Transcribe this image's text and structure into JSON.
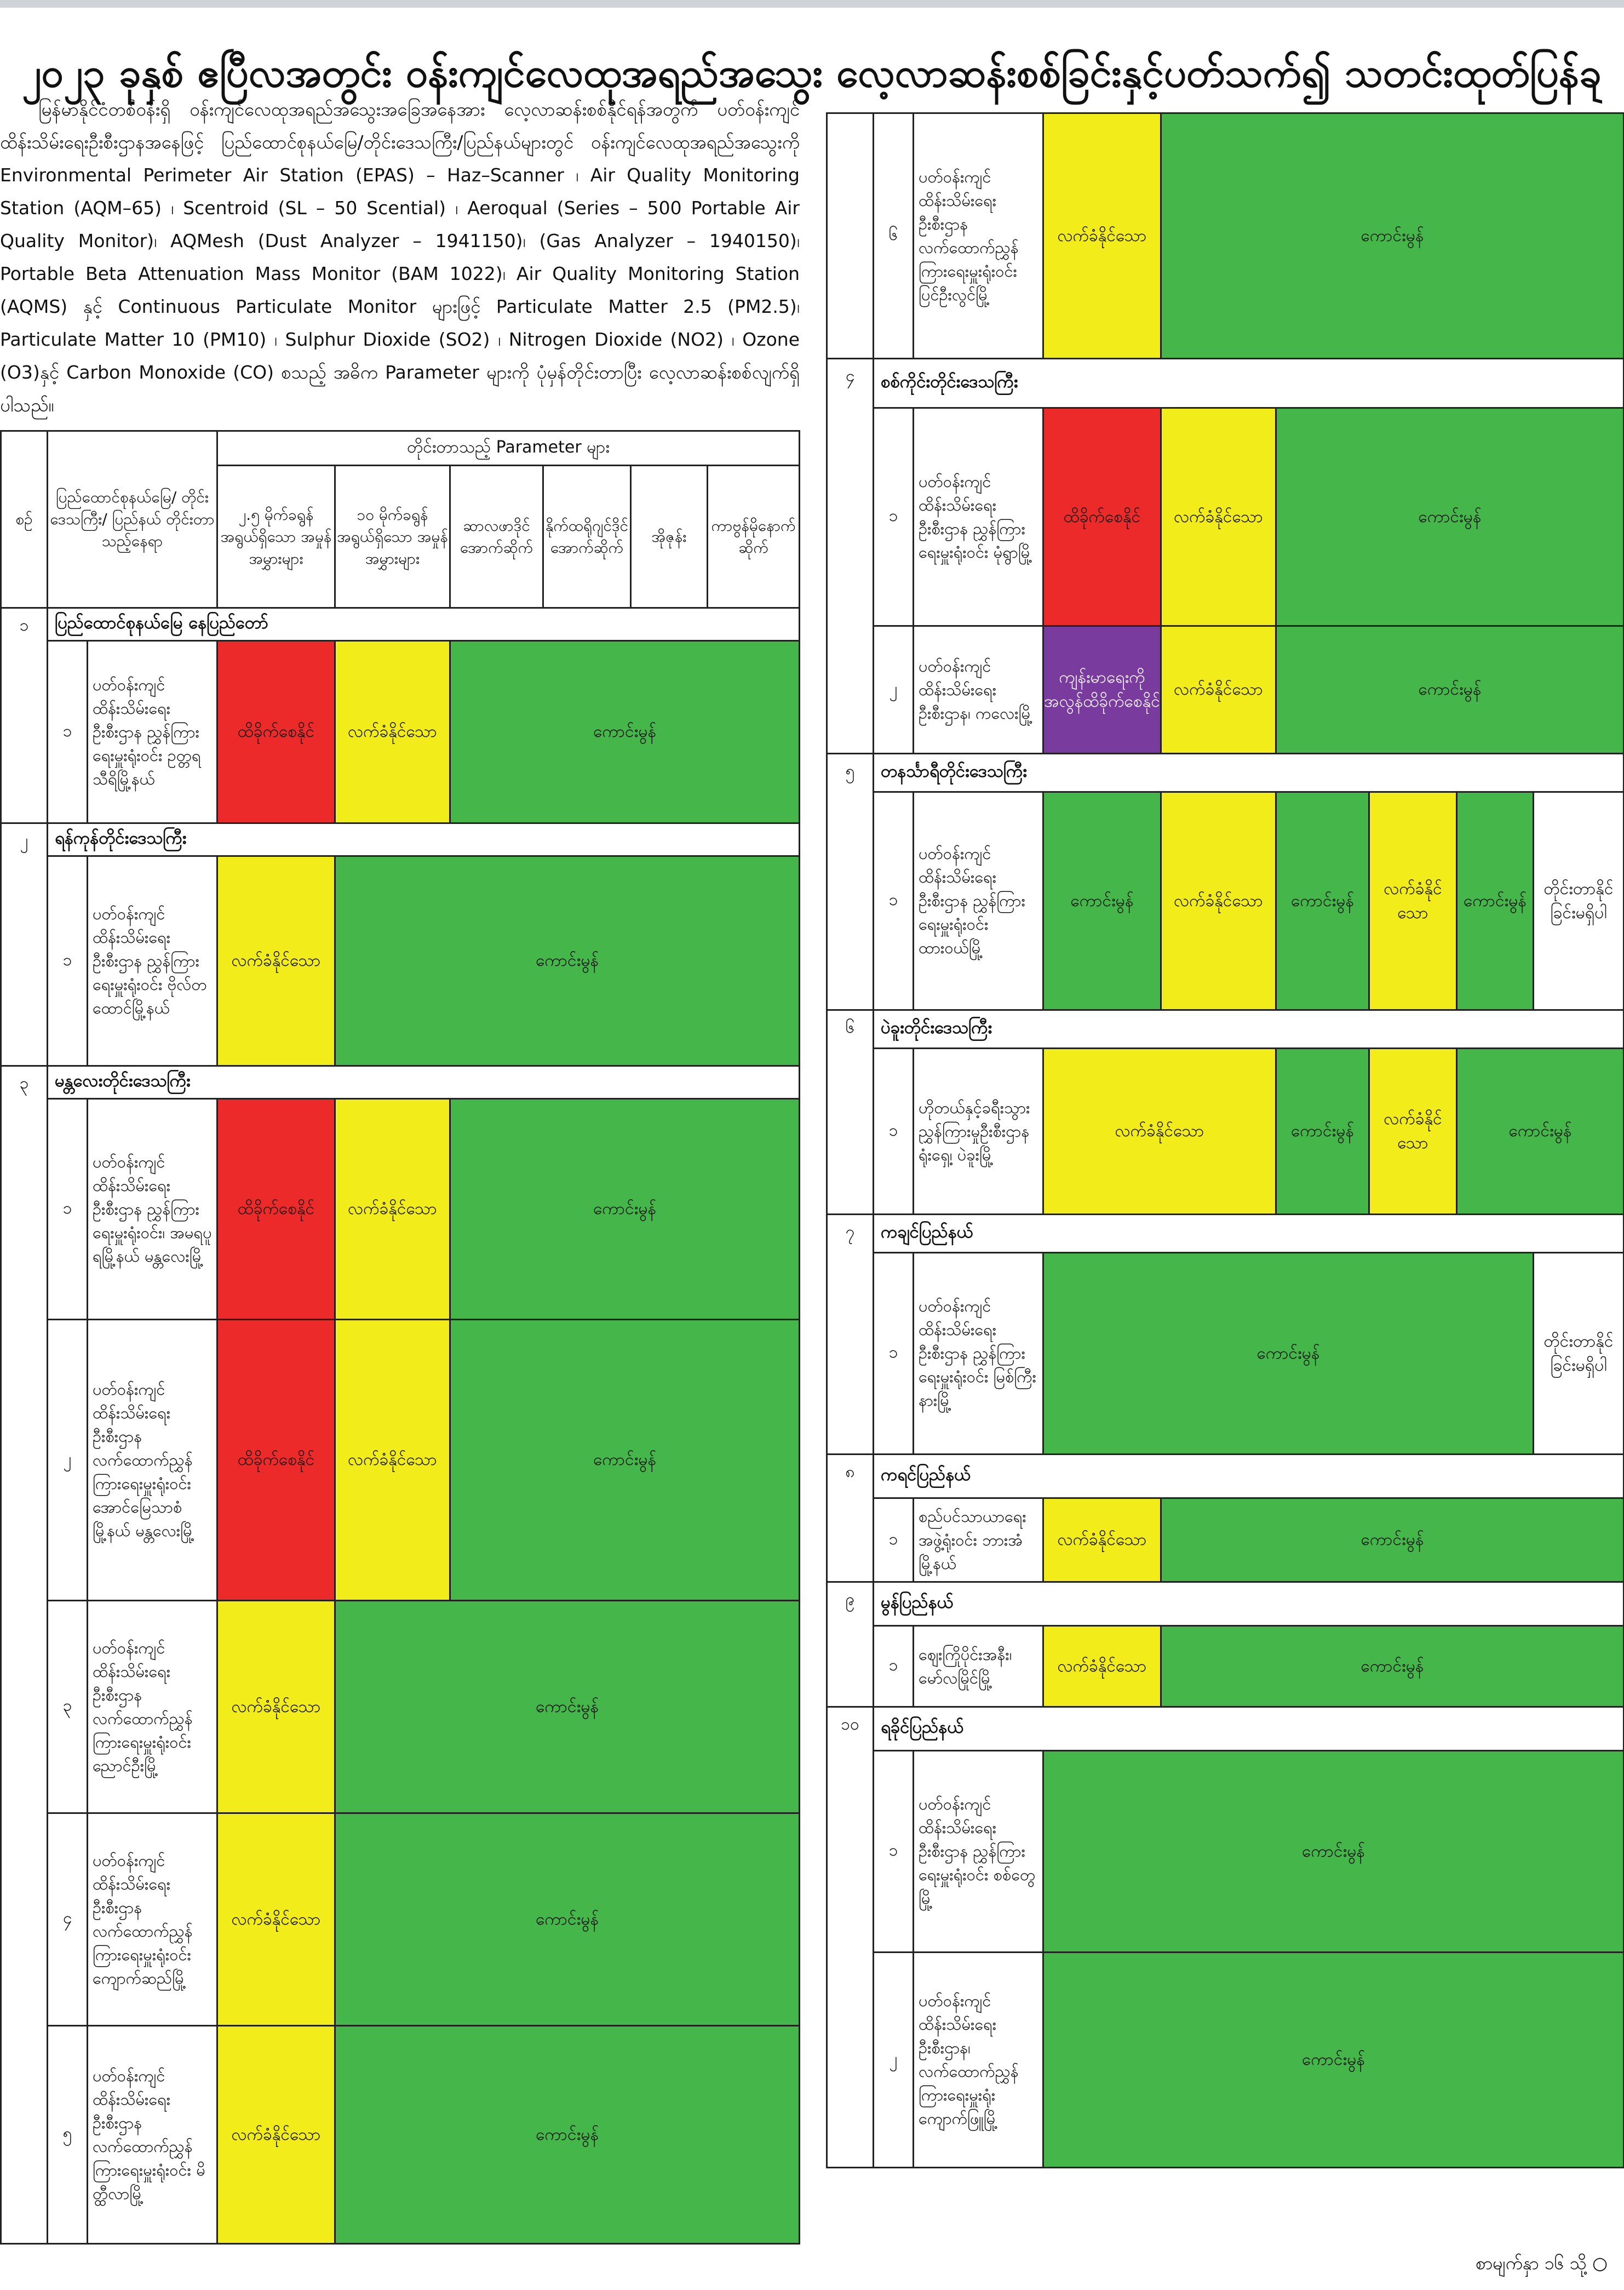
{
  "title": "၂၀၂၃ ခုနှစ် ဧပြီလအတွင်း ဝန်းကျင်လေထုအရည်အသွေး လေ့လာဆန်းစစ်ခြင်းနှင့်ပတ်သက်၍ သတင်းထုတ်ပြန်ချက်",
  "intro": "မြန်မာနိုင်ငံတစ်ဝန်းရှိ ဝန်းကျင်လေထုအရည်အသွေးအခြေအနေအား လေ့လာဆန်းစစ်နိုင်ရန်အတွက် ပတ်ဝန်းကျင်ထိန်းသိမ်းရေးဦးစီးဌာနအနေဖြင့် ပြည်ထောင်စုနယ်မြေ/တိုင်းဒေသကြီး/ပြည်နယ်များတွင် ဝန်းကျင်လေထုအရည်အသွေးကို Environmental Perimeter Air Station (EPAS) – Haz–Scanner ၊ Air Quality Monitoring Station (AQM–65) ၊ Scentroid (SL – 50 Scential) ၊ Aeroqual (Series – 500 Portable Air Quality Monitor)၊ AQMesh (Dust Analyzer – 1941150)၊ (Gas Analyzer – 1940150)၊ Portable Beta Attenuation Mass Monitor (BAM 1022)၊ Air Quality Monitoring Station (AQMS) နှင့် Continuous Particulate Monitor များဖြင့် Particulate Matter 2.5 (PM2.5)၊ Particulate Matter 10 (PM10) ၊ Sulphur Dioxide (SO2) ၊ Nitrogen Dioxide (NO2) ၊ Ozone (O3)နှင့် Carbon Monoxide (CO) စသည့် အဓိက Parameter များကို ပုံမှန်တိုင်းတာပြီး လေ့လာဆန်းစစ်လျက်ရှိပါသည်။",
  "headers": {
    "sr": "စဉ်",
    "location": "ပြည်ထောင်စုနယ်မြေ/ တိုင်းဒေသကြီး/ ပြည်နယ် တိုင်းတာသည့်နေရာ",
    "parameters": "တိုင်းတာသည့် Parameter များ",
    "pm25": "၂.၅ မိုက်ခရွန်အရွယ်ရှိသော အမှုန်အမွှားများ",
    "pm10": "၁၀ မိုက်ခရွန်အရွယ်ရှိသော အမှုန်အမွှားများ",
    "so2": "ဆာလဖာဒိုင်အောက်ဆိုက်",
    "no2": "နိုက်ထရိုဂျင်ဒိုင်အောက်ဆိုက်",
    "o3": "အိုဇုန်း",
    "co": "ကာဗွန်မိုနောက်ဆိုက်"
  },
  "status": {
    "good": "ကောင်းမွန်",
    "moderate": "လက်ခံနိုင်သော",
    "unhealthy": "ထိခိုက်စေနိုင်",
    "sensitive": "ကျန်းမာရေးကိုအလွန်ထိခိုက်စေနိုင်",
    "none": "တိုင်းတာနိုင်ခြင်းမရှိပါ"
  },
  "colors": {
    "good": "#45b649",
    "moderate": "#f3ec1b",
    "unhealthy": "#ec2a2a",
    "sensitive": "#7a3b9e"
  },
  "sections": [
    {
      "no": "၁",
      "name": "ပြည်ထောင်စုနယ်မြေ နေပြည်တော်",
      "stations": [
        {
          "no": "၁",
          "name": "ပတ်ဝန်းကျင်ထိန်းသိမ်းရေးဦးစီးဌာန ညွှန်ကြားရေးမှူးရုံးဝင်း ဥတ္တရသီရိမြို့နယ်"
        }
      ]
    },
    {
      "no": "၂",
      "name": "ရန်ကုန်တိုင်းဒေသကြီး",
      "stations": [
        {
          "no": "၁",
          "name": "ပတ်ဝန်းကျင်ထိန်းသိမ်းရေးဦးစီးဌာန ညွှန်ကြားရေးမှူးရုံးဝင်း ဗိုလ်တထောင်မြို့နယ်"
        }
      ]
    },
    {
      "no": "၃",
      "name": "မန္တလေးတိုင်းဒေသကြီး",
      "stations": [
        {
          "no": "၁",
          "name": "ပတ်ဝန်းကျင်ထိန်းသိမ်းရေးဦးစီးဌာန ညွှန်ကြားရေးမှူးရုံးဝင်း၊ အမရပူရမြို့နယ် မန္တလေးမြို့"
        },
        {
          "no": "၂",
          "name": "ပတ်ဝန်းကျင်ထိန်းသိမ်းရေးဦးစီးဌာန လက်ထောက်ညွှန်ကြားရေးမှူးရုံးဝင်း အောင်မြေသာစံမြို့နယ် မန္တလေးမြို့"
        },
        {
          "no": "၃",
          "name": "ပတ်ဝန်းကျင်ထိန်းသိမ်းရေးဦးစီးဌာန လက်ထောက်ညွှန်ကြားရေးမှူးရုံးဝင်း ညောင်ဦးမြို့"
        },
        {
          "no": "၄",
          "name": "ပတ်ဝန်းကျင်ထိန်းသိမ်းရေးဦးစီးဌာန လက်ထောက်ညွှန်ကြားရေးမှူးရုံးဝင်း ကျောက်ဆည်မြို့"
        },
        {
          "no": "၅",
          "name": "ပတ်ဝန်းကျင်ထိန်းသိမ်းရေးဦးစီးဌာန လက်ထောက်ညွှန်ကြားရေးမှူးရုံးဝင်း မိတ္ထီလာမြို့"
        }
      ]
    },
    {
      "no": "၃",
      "name": "",
      "stations": [
        {
          "no": "၆",
          "name": "ပတ်ဝန်းကျင်ထိန်းသိမ်းရေးဦးစီးဌာန လက်ထောက်ညွှန်ကြားရေးမှူးရုံးဝင်း ပြင်ဦးလွင်မြို့"
        }
      ]
    },
    {
      "no": "၄",
      "name": "စစ်ကိုင်းတိုင်းဒေသကြီး",
      "stations": [
        {
          "no": "၁",
          "name": "ပတ်ဝန်းကျင်ထိန်းသိမ်းရေးဦးစီးဌာန ညွှန်ကြားရေးမှူးရုံးဝင်း မုံရွာမြို့"
        },
        {
          "no": "၂",
          "name": "ပတ်ဝန်းကျင်ထိန်းသိမ်းရေးဦးစီးဌာန၊ ကလေးမြို့"
        }
      ]
    },
    {
      "no": "၅",
      "name": "တနင်္သာရီတိုင်းဒေသကြီး",
      "stations": [
        {
          "no": "၁",
          "name": "ပတ်ဝန်းကျင်ထိန်းသိမ်းရေးဦးစီးဌာန ညွှန်ကြားရေးမှူးရုံးဝင်း ထားဝယ်မြို့"
        }
      ]
    },
    {
      "no": "၆",
      "name": "ပဲခူးတိုင်းဒေသကြီး",
      "stations": [
        {
          "no": "၁",
          "name": "ဟိုတယ်နှင့်ခရီးသွားညွှန်ကြားမှုဦးစီးဌာနရုံးရှေ့၊ ပဲခူးမြို့"
        }
      ]
    },
    {
      "no": "၇",
      "name": "ကချင်ပြည်နယ်",
      "stations": [
        {
          "no": "၁",
          "name": "ပတ်ဝန်းကျင်ထိန်းသိမ်းရေးဦးစီးဌာန ညွှန်ကြားရေးမှူးရုံးဝင်း မြစ်ကြီးနားမြို့"
        }
      ]
    },
    {
      "no": "၈",
      "name": "ကရင်ပြည်နယ်",
      "stations": [
        {
          "no": "၁",
          "name": "စည်ပင်သာယာရေးအဖွဲ့ရုံးဝင်း ဘားအံမြို့နယ်"
        }
      ]
    },
    {
      "no": "၉",
      "name": "မွန်ပြည်နယ်",
      "stations": [
        {
          "no": "၁",
          "name": "ဈေးကြိုပိုင်းအနီး၊ မော်လမြိုင်မြို့"
        }
      ]
    },
    {
      "no": "၁၀",
      "name": "ရခိုင်ပြည်နယ်",
      "stations": [
        {
          "no": "၁",
          "name": "ပတ်ဝန်းကျင်ထိန်းသိမ်းရေးဦးစီးဌာန ညွှန်ကြားရေးမှူးရုံးဝင်း စစ်တွေမြို့"
        },
        {
          "no": "၂",
          "name": "ပတ်ဝန်းကျင်ထိန်းသိမ်းရေးဦးစီးဌာန၊ လက်ထောက်ညွှန်ကြားရေးမှူးရုံး ကျောက်ဖြူမြို့"
        }
      ]
    }
  ],
  "footer": "စာမျက်နှာ ၁၆ သို့ ○"
}
